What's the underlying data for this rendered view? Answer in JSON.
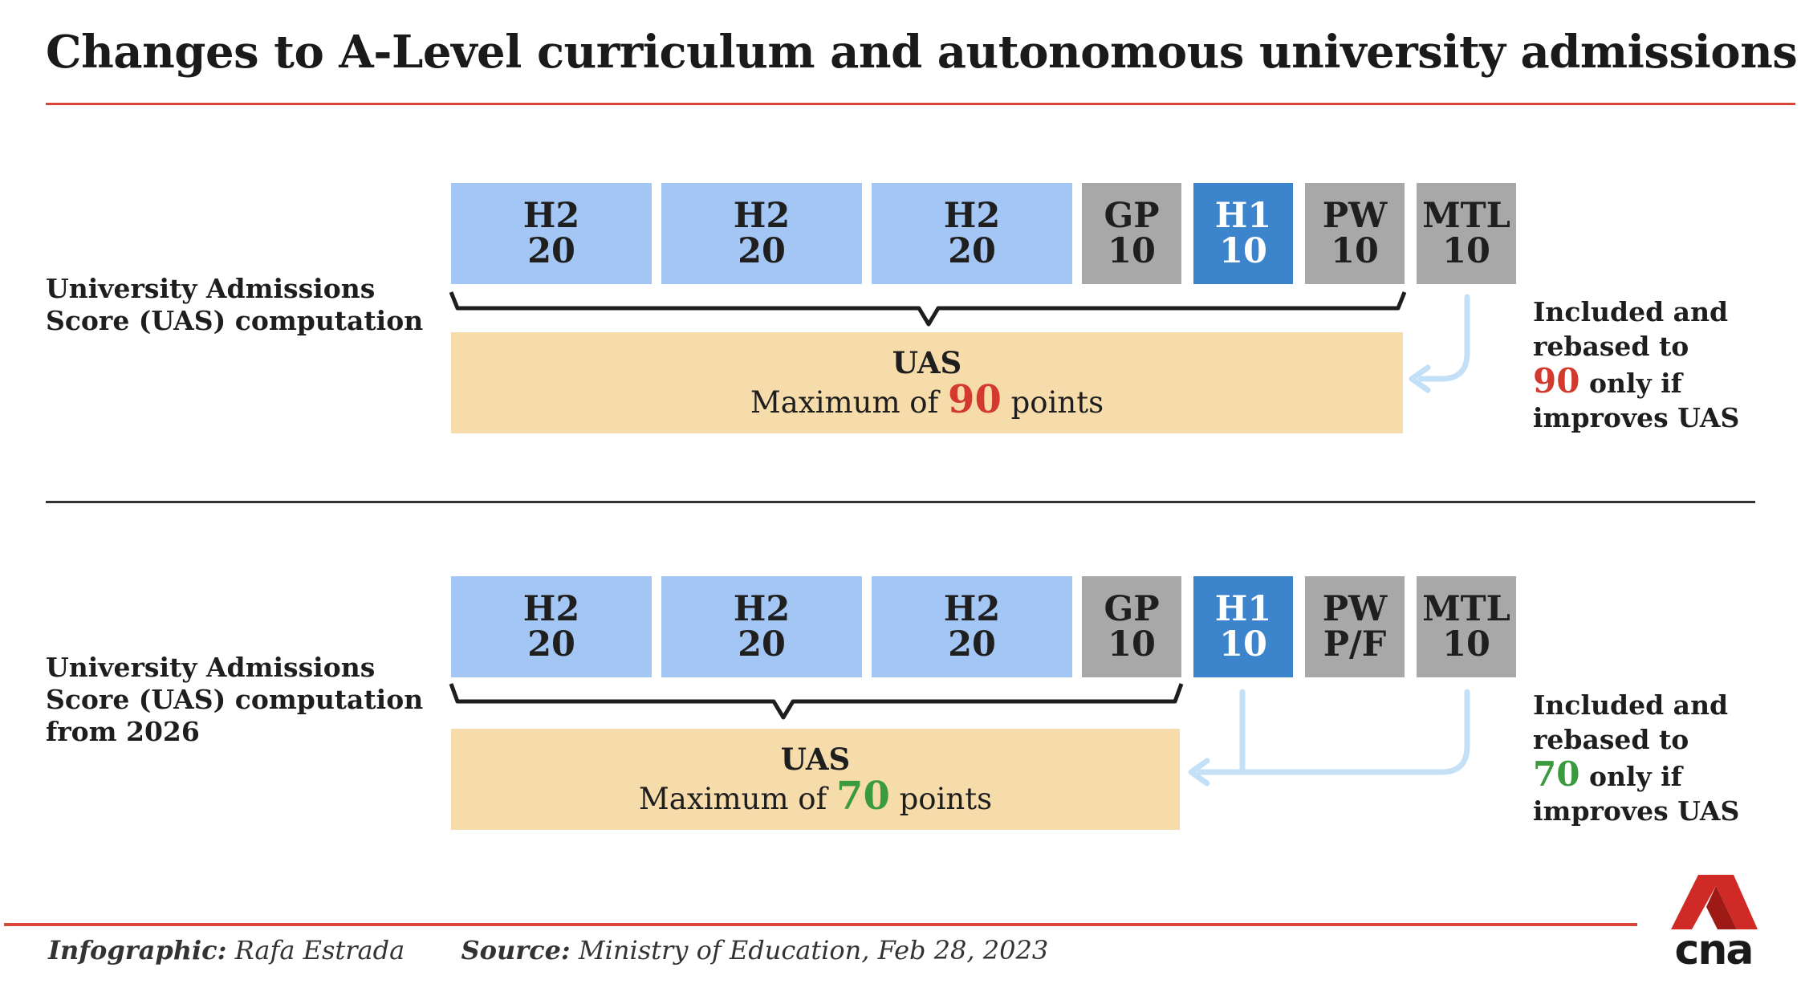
{
  "title": "Changes to A-Level curriculum and autonomous university admissions",
  "sections": [
    {
      "label_lines": [
        "University Admissions",
        "Score (UAS) computation"
      ],
      "boxes": [
        {
          "name": "H2",
          "value": "20"
        },
        {
          "name": "H2",
          "value": "20"
        },
        {
          "name": "H2",
          "value": "20"
        },
        {
          "name": "GP",
          "value": "10"
        },
        {
          "name": "H1",
          "value": "10"
        },
        {
          "name": "PW",
          "value": "10"
        },
        {
          "name": "MTL",
          "value": "10"
        }
      ],
      "uas_heading": "UAS",
      "uas_prefix": "Maximum of ",
      "uas_max": "90",
      "uas_suffix": " points",
      "note_line1": "Included and",
      "note_line2": "rebased to",
      "note_value": "90",
      "note_line3_rest": " only if",
      "note_line4": "improves UAS"
    },
    {
      "label_lines": [
        "University Admissions",
        "Score (UAS) computation",
        "from 2026"
      ],
      "boxes": [
        {
          "name": "H2",
          "value": "20"
        },
        {
          "name": "H2",
          "value": "20"
        },
        {
          "name": "H2",
          "value": "20"
        },
        {
          "name": "GP",
          "value": "10"
        },
        {
          "name": "H1",
          "value": "10"
        },
        {
          "name": "PW",
          "value": "P/F"
        },
        {
          "name": "MTL",
          "value": "10"
        }
      ],
      "uas_heading": "UAS",
      "uas_prefix": "Maximum of ",
      "uas_max": "70",
      "uas_suffix": " points",
      "note_line1": "Included and",
      "note_line2": "rebased to",
      "note_value": "70",
      "note_line3_rest": " only if",
      "note_line4": "improves UAS"
    }
  ],
  "footer": {
    "infographic_label": "Infographic:",
    "infographic_name": " Rafa Estrada",
    "source_label": "Source:",
    "source_text": " Ministry of Education, Feb 28, 2023"
  },
  "logo": {
    "text": "cna",
    "icon": "cna-logo-icon"
  },
  "colors": {
    "h2_box": "#a4c6f5",
    "h1_box": "#3c84cc",
    "grey_box": "#a8a8a8",
    "uas_box": "#f6dbab",
    "accent_red": "#d33a2e",
    "accent_green": "#3a9a3e",
    "arrow": "#c4e0f7",
    "rule_red": "#d9473a"
  }
}
